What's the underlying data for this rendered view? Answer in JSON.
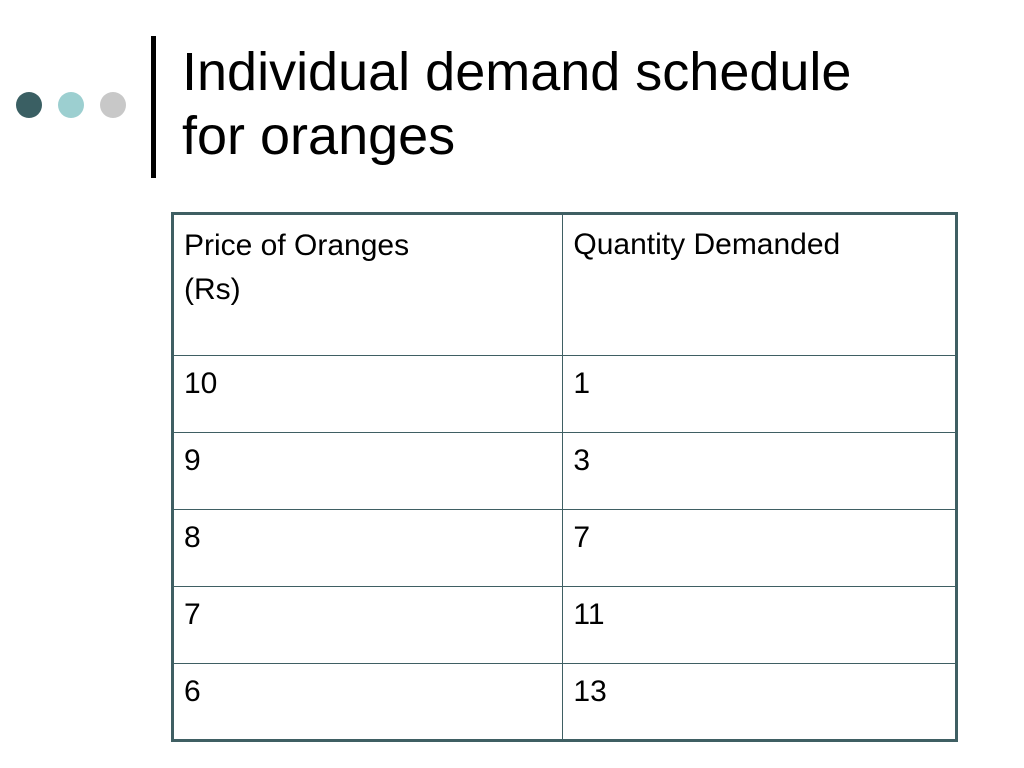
{
  "decoration": {
    "dot_colors": [
      "#3a5f63",
      "#9ccfd0",
      "#c8c8c8"
    ]
  },
  "slide": {
    "title_line1": "Individual demand schedule",
    "title_line2": "for oranges"
  },
  "table": {
    "headers": {
      "price_line1": "Price of Oranges",
      "price_line2": "(Rs)",
      "quantity": "Quantity Demanded"
    },
    "rows": [
      {
        "price": "10",
        "quantity": "1"
      },
      {
        "price": "9",
        "quantity": "3"
      },
      {
        "price": "8",
        "quantity": "7"
      },
      {
        "price": "7",
        "quantity": "11"
      },
      {
        "price": "6",
        "quantity": "13"
      }
    ]
  },
  "chart_data": {
    "type": "table",
    "columns": [
      "Price of Oranges (Rs)",
      "Quantity Demanded"
    ],
    "rows": [
      [
        10,
        1
      ],
      [
        9,
        3
      ],
      [
        8,
        7
      ],
      [
        7,
        11
      ],
      [
        6,
        13
      ]
    ]
  }
}
